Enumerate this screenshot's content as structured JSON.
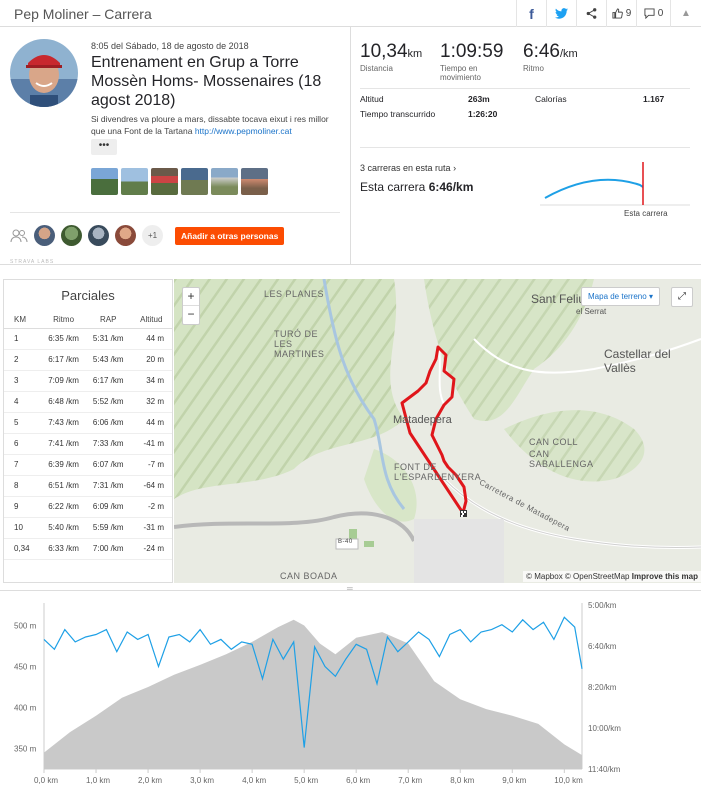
{
  "header": {
    "title": "Pep Moliner – Carrera",
    "facebook": "f",
    "twitter": "t",
    "kudos_count": "9",
    "comments_count": "0"
  },
  "activity": {
    "datetime": "8:05 del Sábado, 18 de agosto de 2018",
    "title": "Entrenament en Grup a Torre Mossèn Homs- Mossenaires (18 agost 2018)",
    "description": "Si divendres va ploure a mars, dissabte tocava eixut i res millor que una Font de la Tartana",
    "link": "http://www.pepmoliner.cat",
    "more": "•••",
    "extra_athletes": "+1",
    "add_button": "Añadir a otras personas",
    "labs_text": "STRAVA LABS"
  },
  "stats": {
    "distance": {
      "value": "10,34",
      "unit": "km",
      "label": "Distancia"
    },
    "moving_time": {
      "value": "1:09:59",
      "label": "Tiempo en movimiento"
    },
    "pace": {
      "value": "6:46",
      "unit": "/km",
      "label": "Ritmo"
    },
    "elevation_label": "Altitud",
    "elevation_value": "263m",
    "calories_label": "Calorías",
    "calories_value": "1.167",
    "elapsed_label": "Tiempo transcurrido",
    "elapsed_value": "1:26:20",
    "runs_on_route": "3 carreras en esta ruta",
    "this_run_label": "Esta carrera",
    "this_run_pace": "6:46/km",
    "this_run_marker": "Esta carrera"
  },
  "splits": {
    "title": "Parciales",
    "headers": [
      "KM",
      "Ritmo",
      "RAP",
      "Altitud"
    ],
    "rows": [
      [
        "1",
        "6:35 /km",
        "5:31 /km",
        "44 m"
      ],
      [
        "2",
        "6:17 /km",
        "5:43 /km",
        "20 m"
      ],
      [
        "3",
        "7:09 /km",
        "6:17 /km",
        "34 m"
      ],
      [
        "4",
        "6:48 /km",
        "5:52 /km",
        "32 m"
      ],
      [
        "5",
        "7:43 /km",
        "6:06 /km",
        "44 m"
      ],
      [
        "6",
        "7:41 /km",
        "7:33 /km",
        "-41 m"
      ],
      [
        "7",
        "6:39 /km",
        "6:07 /km",
        "-7 m"
      ],
      [
        "8",
        "6:51 /km",
        "7:31 /km",
        "-64 m"
      ],
      [
        "9",
        "6:22 /km",
        "6:09 /km",
        "-2 m"
      ],
      [
        "10",
        "5:40 /km",
        "5:59 /km",
        "-31 m"
      ],
      [
        "0,34",
        "6:33 /km",
        "7:00 /km",
        "-24 m"
      ]
    ]
  },
  "map": {
    "labels": [
      "LES PLANES",
      "TURÓ DE LES MARTINES",
      "CAN SABALLENGA",
      "CAN COLL",
      "FONT DE L'ESPARDENYERA",
      "CAN BOADA"
    ],
    "towns": [
      "Sant Feliu",
      "Castellar del Vallès",
      "Matadepera",
      "el Serrat"
    ],
    "road": "Carretera de Matadepera",
    "road_code": "B-40",
    "zoom_in": "+",
    "zoom_out": "−",
    "terrain_button": "Mapa de terreno",
    "attribution": "© Mapbox © OpenStreetMap",
    "improve": "Improve this map",
    "route_color": "#e0161b"
  },
  "chart_data": {
    "type": "area",
    "x_ticks": [
      "0,0 km",
      "1,0 km",
      "2,0 km",
      "3,0 km",
      "4,0 km",
      "5,0 km",
      "6,0 km",
      "7,0 km",
      "8,0 km",
      "9,0 km",
      "10,0 km"
    ],
    "y_left_ticks": [
      "500 m",
      "450 m",
      "400 m",
      "350 m"
    ],
    "y_right_ticks": [
      "5:00/km",
      "6:40/km",
      "8:20/km",
      "10:00/km",
      "11:40/km"
    ],
    "xlim": [
      0,
      10.34
    ],
    "ylim": [
      325,
      525
    ],
    "series": [
      {
        "kind": "elevation",
        "x": [
          0,
          0.5,
          1,
          1.5,
          2,
          2.5,
          3,
          3.5,
          4,
          4.5,
          4.8,
          5,
          5.3,
          5.6,
          6,
          6.5,
          7,
          7.5,
          8,
          8.5,
          9,
          9.5,
          10,
          10.34
        ],
        "values": [
          345,
          370,
          390,
          412,
          425,
          440,
          452,
          465,
          480,
          498,
          507,
          500,
          478,
          465,
          485,
          492,
          478,
          432,
          410,
          398,
          390,
          380,
          355,
          342
        ],
        "color": "#c9c9c9"
      },
      {
        "kind": "pace",
        "x": [
          0,
          0.2,
          0.4,
          0.6,
          0.8,
          1,
          1.2,
          1.4,
          1.6,
          1.8,
          2,
          2.2,
          2.4,
          2.6,
          2.8,
          3,
          3.2,
          3.4,
          3.6,
          3.8,
          4,
          4.2,
          4.4,
          4.6,
          4.8,
          5,
          5.2,
          5.4,
          5.6,
          5.8,
          6,
          6.2,
          6.4,
          6.6,
          6.8,
          7,
          7.2,
          7.4,
          7.6,
          7.8,
          8,
          8.2,
          8.4,
          8.6,
          8.8,
          9,
          9.2,
          9.4,
          9.6,
          9.8,
          10,
          10.2,
          10.34
        ],
        "values": [
          6.4,
          6.8,
          6.0,
          6.5,
          6.3,
          6.2,
          6.0,
          6.9,
          6.1,
          6.4,
          6.2,
          7.5,
          6.3,
          6.2,
          6.5,
          6.0,
          6.6,
          6.4,
          6.8,
          6.5,
          6.6,
          8.0,
          6.4,
          7.2,
          6.5,
          10.8,
          6.7,
          7.5,
          7.9,
          7.2,
          6.6,
          6.8,
          8.2,
          6.3,
          6.9,
          6.5,
          6.1,
          6.4,
          7.1,
          6.2,
          6.0,
          6.5,
          6.1,
          6.0,
          5.8,
          6.1,
          5.6,
          6.0,
          5.7,
          6.4,
          5.5,
          5.9,
          7.6
        ],
        "color": "#1ea0e6"
      }
    ]
  }
}
